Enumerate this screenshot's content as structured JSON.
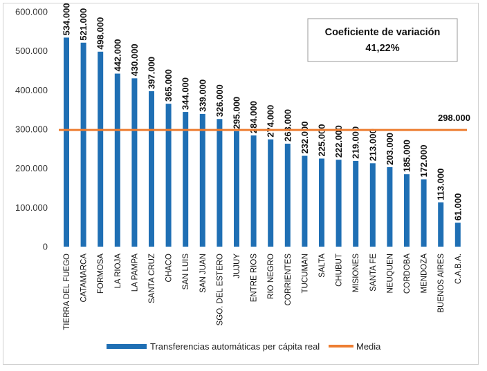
{
  "chart_data": {
    "type": "bar",
    "categories": [
      "TIERRA DEL FUEGO",
      "CATAMARCA",
      "FORMOSA",
      "LA RIOJA",
      "LA PAMPA",
      "SANTA CRUZ",
      "CHACO",
      "SAN LUIS",
      "SAN JUAN",
      "SGO. DEL ESTERO",
      "JUJUY",
      "ENTRE RIOS",
      "RIO NEGRO",
      "CORRIENTES",
      "TUCUMAN",
      "SALTA",
      "CHUBUT",
      "MISIONES",
      "SANTA FE",
      "NEUQUEN",
      "CORDOBA",
      "MENDOZA",
      "BUENOS AIRES",
      "C.A.B.A."
    ],
    "series": [
      {
        "name": "Transferencias automáticas per cápita real",
        "values": [
          534000,
          521000,
          498000,
          442000,
          430000,
          397000,
          365000,
          344000,
          339000,
          326000,
          295000,
          284000,
          274000,
          263000,
          232000,
          225000,
          222000,
          219000,
          213000,
          203000,
          185000,
          172000,
          113000,
          61000
        ],
        "value_labels": [
          "534.000",
          "521.000",
          "498.000",
          "442.000",
          "430.000",
          "397.000",
          "365.000",
          "344.000",
          "339.000",
          "326.000",
          "295.000",
          "284.000",
          "274.000",
          "263.000",
          "232.000",
          "225.000",
          "222.000",
          "219.000",
          "213.000",
          "203.000",
          "185.000",
          "172.000",
          "113.000",
          "61.000"
        ],
        "color": "#1f6fb4"
      },
      {
        "name": "Media",
        "value": 298000,
        "value_label": "298.000",
        "color": "#ed7d31"
      }
    ],
    "ylim": [
      0,
      600000
    ],
    "yticks": [
      0,
      100000,
      200000,
      300000,
      400000,
      500000,
      600000
    ],
    "ytick_labels": [
      "0",
      "100.000",
      "200.000",
      "300.000",
      "400.000",
      "500.000",
      "600.000"
    ],
    "grid": false,
    "legend_position": "bottom",
    "annotation_box": {
      "title": "Coeficiente de variación",
      "value": "41,22%"
    }
  }
}
